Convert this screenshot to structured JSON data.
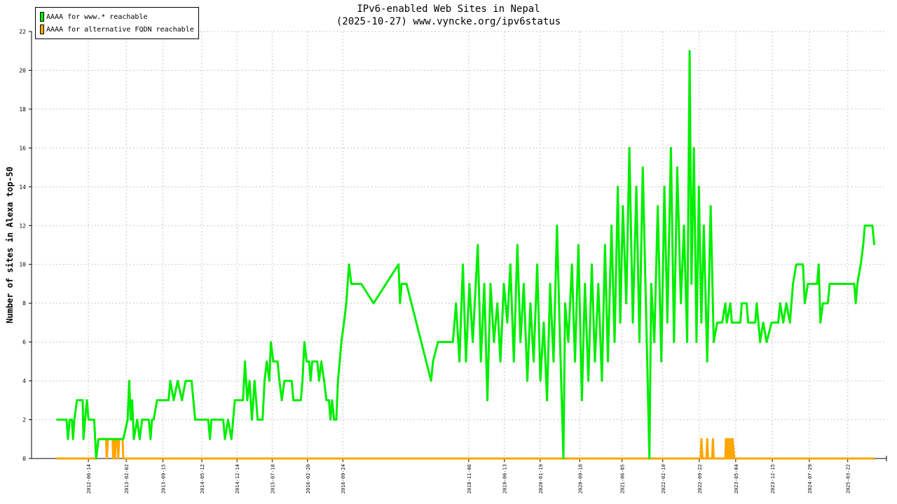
{
  "chart_data": {
    "type": "line",
    "title": "IPv6-enabled Web Sites in Nepal",
    "subtitle": "(2025-10-27) www.vyncke.org/ipv6status",
    "xlabel": "",
    "ylabel": "Number of sites in Alexa top-50",
    "ylim": [
      0,
      22
    ],
    "yticks": [
      0,
      2,
      4,
      6,
      8,
      10,
      12,
      14,
      16,
      18,
      20,
      22
    ],
    "grid": true,
    "legend_position": "top-left",
    "x_ticks": [
      "2012-06-14",
      "2013-02-02",
      "2013-09-15",
      "2014-05-12",
      "2014-12-14",
      "2015-07-18",
      "2016-02-20",
      "2016-09-24",
      "2018-11-06",
      "2019-06-13",
      "2020-01-19",
      "2020-09-18",
      "2021-06-05",
      "2022-02-10",
      "2022-09-22",
      "2023-05-04",
      "2023-12-15",
      "2024-07-29",
      "2025-03-22"
    ],
    "series": [
      {
        "name": "AAAA for www.* reachable",
        "color": "#00ee00",
        "points": [
          [
            "2011-12-01",
            2
          ],
          [
            "2012-02-01",
            2
          ],
          [
            "2012-02-10",
            1
          ],
          [
            "2012-02-20",
            2
          ],
          [
            "2012-03-05",
            2
          ],
          [
            "2012-03-12",
            1
          ],
          [
            "2012-03-20",
            2
          ],
          [
            "2012-04-05",
            3
          ],
          [
            "2012-05-10",
            3
          ],
          [
            "2012-05-15",
            1
          ],
          [
            "2012-05-25",
            2
          ],
          [
            "2012-06-05",
            3
          ],
          [
            "2012-06-15",
            2
          ],
          [
            "2012-07-20",
            2
          ],
          [
            "2012-08-01",
            0
          ],
          [
            "2012-08-15",
            1
          ],
          [
            "2012-12-01",
            1
          ],
          [
            "2013-01-15",
            1
          ],
          [
            "2013-02-10",
            2
          ],
          [
            "2013-02-20",
            4
          ],
          [
            "2013-03-01",
            2
          ],
          [
            "2013-03-10",
            3
          ],
          [
            "2013-03-20",
            1
          ],
          [
            "2013-04-10",
            2
          ],
          [
            "2013-04-25",
            1
          ],
          [
            "2013-05-10",
            2
          ],
          [
            "2013-06-20",
            2
          ],
          [
            "2013-07-01",
            1
          ],
          [
            "2013-07-10",
            2
          ],
          [
            "2013-07-20",
            2
          ],
          [
            "2013-08-10",
            3
          ],
          [
            "2013-10-20",
            3
          ],
          [
            "2013-10-30",
            4
          ],
          [
            "2013-11-20",
            3
          ],
          [
            "2013-12-15",
            4
          ],
          [
            "2014-01-10",
            3
          ],
          [
            "2014-02-01",
            4
          ],
          [
            "2014-03-10",
            4
          ],
          [
            "2014-04-01",
            2
          ],
          [
            "2014-06-20",
            2
          ],
          [
            "2014-07-01",
            1
          ],
          [
            "2014-07-10",
            2
          ],
          [
            "2014-09-20",
            2
          ],
          [
            "2014-10-01",
            1
          ],
          [
            "2014-10-20",
            2
          ],
          [
            "2014-11-10",
            1
          ],
          [
            "2014-12-01",
            3
          ],
          [
            "2015-01-20",
            3
          ],
          [
            "2015-02-01",
            5
          ],
          [
            "2015-02-15",
            3
          ],
          [
            "2015-03-01",
            4
          ],
          [
            "2015-03-15",
            2
          ],
          [
            "2015-04-01",
            4
          ],
          [
            "2015-04-20",
            2
          ],
          [
            "2015-05-20",
            2
          ],
          [
            "2015-06-01",
            4
          ],
          [
            "2015-06-15",
            5
          ],
          [
            "2015-07-01",
            4
          ],
          [
            "2015-07-10",
            6
          ],
          [
            "2015-07-25",
            5
          ],
          [
            "2015-08-20",
            5
          ],
          [
            "2015-09-01",
            4
          ],
          [
            "2015-09-15",
            3
          ],
          [
            "2015-10-01",
            4
          ],
          [
            "2015-11-15",
            4
          ],
          [
            "2015-11-25",
            3
          ],
          [
            "2016-01-10",
            3
          ],
          [
            "2016-01-20",
            4
          ],
          [
            "2016-02-01",
            6
          ],
          [
            "2016-02-15",
            5
          ],
          [
            "2016-03-01",
            5
          ],
          [
            "2016-03-10",
            4
          ],
          [
            "2016-03-20",
            5
          ],
          [
            "2016-04-20",
            5
          ],
          [
            "2016-05-01",
            4
          ],
          [
            "2016-05-15",
            5
          ],
          [
            "2016-06-01",
            4
          ],
          [
            "2016-06-15",
            3
          ],
          [
            "2016-07-01",
            3
          ],
          [
            "2016-07-10",
            2
          ],
          [
            "2016-07-20",
            3
          ],
          [
            "2016-08-01",
            2
          ],
          [
            "2016-08-15",
            2
          ],
          [
            "2016-08-25",
            4
          ],
          [
            "2016-09-05",
            5
          ],
          [
            "2016-09-15",
            6
          ],
          [
            "2016-10-01",
            7
          ],
          [
            "2016-10-15",
            8
          ],
          [
            "2016-11-01",
            10
          ],
          [
            "2016-11-15",
            9
          ],
          [
            "2017-01-15",
            9
          ],
          [
            "2017-04-01",
            8
          ],
          [
            "2017-09-01",
            10
          ],
          [
            "2017-09-10",
            8
          ],
          [
            "2017-09-20",
            9
          ],
          [
            "2017-10-20",
            9
          ],
          [
            "2018-03-20",
            4
          ],
          [
            "2018-04-01",
            5
          ],
          [
            "2018-05-01",
            6
          ],
          [
            "2018-08-01",
            6
          ],
          [
            "2018-08-20",
            8
          ],
          [
            "2018-09-10",
            5
          ],
          [
            "2018-10-01",
            10
          ],
          [
            "2018-10-20",
            5
          ],
          [
            "2018-11-10",
            9
          ],
          [
            "2018-12-01",
            6
          ],
          [
            "2019-01-01",
            11
          ],
          [
            "2019-01-20",
            5
          ],
          [
            "2019-02-10",
            9
          ],
          [
            "2019-03-01",
            3
          ],
          [
            "2019-03-20",
            9
          ],
          [
            "2019-04-10",
            6
          ],
          [
            "2019-05-01",
            8
          ],
          [
            "2019-05-20",
            5
          ],
          [
            "2019-06-10",
            9
          ],
          [
            "2019-07-01",
            7
          ],
          [
            "2019-07-20",
            10
          ],
          [
            "2019-08-10",
            5
          ],
          [
            "2019-09-01",
            11
          ],
          [
            "2019-09-20",
            6
          ],
          [
            "2019-10-10",
            9
          ],
          [
            "2019-11-01",
            4
          ],
          [
            "2019-11-20",
            8
          ],
          [
            "2019-12-10",
            5
          ],
          [
            "2020-01-01",
            10
          ],
          [
            "2020-01-20",
            4
          ],
          [
            "2020-02-10",
            7
          ],
          [
            "2020-03-01",
            3
          ],
          [
            "2020-03-20",
            9
          ],
          [
            "2020-04-10",
            5
          ],
          [
            "2020-05-01",
            12
          ],
          [
            "2020-05-20",
            6
          ],
          [
            "2020-06-10",
            0
          ],
          [
            "2020-06-20",
            8
          ],
          [
            "2020-07-10",
            6
          ],
          [
            "2020-08-01",
            10
          ],
          [
            "2020-08-20",
            5
          ],
          [
            "2020-09-10",
            11
          ],
          [
            "2020-10-01",
            3
          ],
          [
            "2020-10-20",
            9
          ],
          [
            "2020-11-10",
            4
          ],
          [
            "2020-12-01",
            10
          ],
          [
            "2020-12-20",
            5
          ],
          [
            "2021-01-10",
            9
          ],
          [
            "2021-02-01",
            4
          ],
          [
            "2021-02-20",
            11
          ],
          [
            "2021-03-10",
            5
          ],
          [
            "2021-04-01",
            12
          ],
          [
            "2021-04-20",
            6
          ],
          [
            "2021-05-10",
            14
          ],
          [
            "2021-05-25",
            7
          ],
          [
            "2021-06-10",
            13
          ],
          [
            "2021-07-01",
            8
          ],
          [
            "2021-07-20",
            16
          ],
          [
            "2021-08-10",
            7
          ],
          [
            "2021-09-01",
            14
          ],
          [
            "2021-09-20",
            6
          ],
          [
            "2021-10-10",
            15
          ],
          [
            "2021-11-01",
            7
          ],
          [
            "2021-11-20",
            0
          ],
          [
            "2021-12-01",
            9
          ],
          [
            "2021-12-20",
            6
          ],
          [
            "2022-01-10",
            13
          ],
          [
            "2022-02-01",
            5
          ],
          [
            "2022-02-20",
            14
          ],
          [
            "2022-03-10",
            7
          ],
          [
            "2022-04-01",
            16
          ],
          [
            "2022-04-20",
            6
          ],
          [
            "2022-05-10",
            15
          ],
          [
            "2022-06-01",
            8
          ],
          [
            "2022-06-20",
            12
          ],
          [
            "2022-07-10",
            6
          ],
          [
            "2022-07-25",
            21
          ],
          [
            "2022-08-05",
            9
          ],
          [
            "2022-08-20",
            16
          ],
          [
            "2022-09-05",
            6
          ],
          [
            "2022-09-20",
            14
          ],
          [
            "2022-10-05",
            7
          ],
          [
            "2022-10-20",
            12
          ],
          [
            "2022-11-10",
            5
          ],
          [
            "2022-12-01",
            13
          ],
          [
            "2022-12-20",
            6
          ],
          [
            "2023-01-10",
            7
          ],
          [
            "2023-02-10",
            7
          ],
          [
            "2023-03-01",
            8
          ],
          [
            "2023-03-10",
            7
          ],
          [
            "2023-04-01",
            8
          ],
          [
            "2023-04-10",
            7
          ],
          [
            "2023-06-01",
            7
          ],
          [
            "2023-06-10",
            8
          ],
          [
            "2023-07-10",
            8
          ],
          [
            "2023-07-20",
            7
          ],
          [
            "2023-09-01",
            7
          ],
          [
            "2023-09-10",
            8
          ],
          [
            "2023-10-01",
            6
          ],
          [
            "2023-10-20",
            7
          ],
          [
            "2023-11-10",
            6
          ],
          [
            "2023-12-10",
            7
          ],
          [
            "2024-01-20",
            7
          ],
          [
            "2024-02-01",
            8
          ],
          [
            "2024-02-20",
            7
          ],
          [
            "2024-03-10",
            8
          ],
          [
            "2024-04-01",
            7
          ],
          [
            "2024-04-20",
            9
          ],
          [
            "2024-05-10",
            10
          ],
          [
            "2024-06-20",
            10
          ],
          [
            "2024-07-01",
            8
          ],
          [
            "2024-07-20",
            9
          ],
          [
            "2024-08-10",
            9
          ],
          [
            "2024-09-15",
            9
          ],
          [
            "2024-09-25",
            10
          ],
          [
            "2024-10-05",
            7
          ],
          [
            "2024-10-20",
            8
          ],
          [
            "2024-11-20",
            8
          ],
          [
            "2024-12-01",
            9
          ],
          [
            "2025-05-01",
            9
          ],
          [
            "2025-05-10",
            8
          ],
          [
            "2025-05-20",
            9
          ],
          [
            "2025-06-10",
            10
          ],
          [
            "2025-06-25",
            11
          ],
          [
            "2025-07-05",
            12
          ],
          [
            "2025-08-20",
            12
          ],
          [
            "2025-09-01",
            11
          ]
        ]
      },
      {
        "name": "AAAA for alternative FQDN reachable",
        "color": "#ffa500",
        "points": [
          [
            "2011-12-01",
            0
          ],
          [
            "2012-08-01",
            0
          ],
          [
            "2012-08-15",
            1
          ],
          [
            "2012-10-01",
            1
          ],
          [
            "2012-10-05",
            0
          ],
          [
            "2012-10-12",
            1
          ],
          [
            "2012-11-10",
            1
          ],
          [
            "2012-11-14",
            0
          ],
          [
            "2012-11-20",
            1
          ],
          [
            "2012-11-25",
            0
          ],
          [
            "2012-11-30",
            1
          ],
          [
            "2012-12-10",
            1
          ],
          [
            "2012-12-15",
            0
          ],
          [
            "2012-12-20",
            1
          ],
          [
            "2013-01-10",
            1
          ],
          [
            "2013-01-15",
            0
          ],
          [
            "2022-10-01",
            0
          ],
          [
            "2022-10-05",
            1
          ],
          [
            "2022-10-12",
            0
          ],
          [
            "2022-11-05",
            0
          ],
          [
            "2022-11-10",
            1
          ],
          [
            "2022-11-15",
            0
          ],
          [
            "2022-12-10",
            0
          ],
          [
            "2022-12-15",
            1
          ],
          [
            "2022-12-20",
            0
          ],
          [
            "2023-03-01",
            0
          ],
          [
            "2023-03-05",
            1
          ],
          [
            "2023-03-10",
            0
          ],
          [
            "2023-03-15",
            1
          ],
          [
            "2023-03-20",
            0
          ],
          [
            "2023-03-25",
            1
          ],
          [
            "2023-04-01",
            0
          ],
          [
            "2023-04-05",
            1
          ],
          [
            "2023-04-10",
            0
          ],
          [
            "2023-04-15",
            1
          ],
          [
            "2023-04-25",
            0
          ],
          [
            "2025-09-01",
            0
          ]
        ]
      }
    ]
  }
}
